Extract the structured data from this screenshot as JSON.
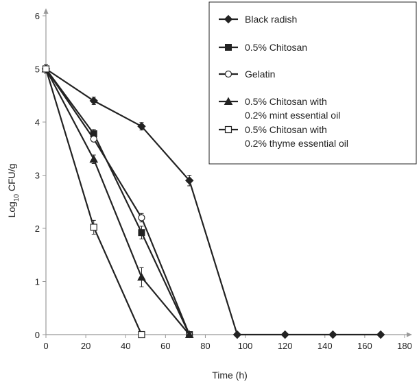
{
  "chart_data": {
    "type": "line",
    "title": "",
    "xlabel": "Time (h)",
    "ylabel_main": "Log",
    "ylabel_sub": "10",
    "ylabel_rest": " CFU/g",
    "xlim": [
      0,
      180
    ],
    "ylim": [
      0,
      6
    ],
    "xticks": [
      0,
      20,
      40,
      60,
      80,
      100,
      120,
      140,
      160,
      180
    ],
    "yticks": [
      0,
      1,
      2,
      3,
      4,
      5,
      6
    ],
    "grid": false,
    "legend_position": "top-right",
    "series": [
      {
        "name": "Black radish",
        "marker": "diamond-filled",
        "x": [
          0,
          24,
          48,
          72,
          96,
          120,
          144,
          168
        ],
        "y": [
          5.0,
          4.4,
          3.92,
          2.9,
          0,
          0,
          0,
          0
        ],
        "err": [
          0.08,
          0.07,
          0.07,
          0.1,
          0,
          0,
          0,
          0
        ]
      },
      {
        "name": "0.5% Chitosan",
        "marker": "square-filled",
        "x": [
          0,
          24,
          48,
          72
        ],
        "y": [
          5.0,
          3.78,
          1.92,
          0
        ],
        "err": [
          0.05,
          0.08,
          0.12,
          0
        ]
      },
      {
        "name": "Gelatin",
        "marker": "circle-open",
        "x": [
          0,
          24,
          48,
          72
        ],
        "y": [
          5.0,
          3.68,
          2.2,
          0
        ],
        "err": [
          0.05,
          0.05,
          0.08,
          0
        ]
      },
      {
        "name": "0.5% Chitosan with",
        "name_line2": "0.2% mint essential oil",
        "marker": "triangle-filled",
        "x": [
          0,
          24,
          48,
          72
        ],
        "y": [
          5.0,
          3.3,
          1.08,
          0
        ],
        "err": [
          0.05,
          0.08,
          0.18,
          0
        ]
      },
      {
        "name": "0.5% Chitosan with",
        "name_line2": "0.2% thyme essential oil",
        "marker": "square-open",
        "x": [
          0,
          24,
          48
        ],
        "y": [
          5.0,
          2.02,
          0
        ],
        "err": [
          0.05,
          0.13,
          0
        ]
      }
    ]
  }
}
